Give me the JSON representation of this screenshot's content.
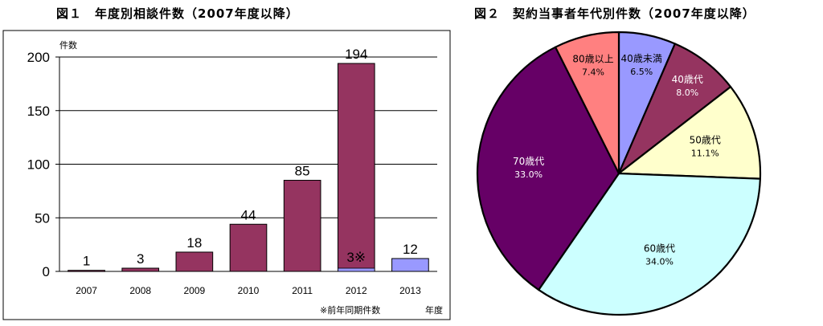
{
  "figures": {
    "bar_title": "図１　年度別相談件数（2007年度以降）",
    "pie_title": "図２　契約当事者年代別件数（2007年度以降）"
  },
  "chart_data": [
    {
      "type": "bar",
      "title": "図１　年度別相談件数（2007年度以降）",
      "ylabel": "件数",
      "xlabel": "年度",
      "ylim": [
        0,
        200
      ],
      "yticks": [
        0,
        50,
        100,
        150,
        200
      ],
      "categories": [
        "2007",
        "2008",
        "2009",
        "2010",
        "2011",
        "2012",
        "2013"
      ],
      "values": [
        1,
        3,
        18,
        44,
        85,
        194,
        12
      ],
      "value_labels": [
        "1",
        "3",
        "18",
        "44",
        "85",
        "194",
        "12"
      ],
      "bar_colors": [
        "#953460",
        "#953460",
        "#953460",
        "#953460",
        "#953460",
        "#953460",
        "#9999ff"
      ],
      "overlay": {
        "category": "2012",
        "value": 3,
        "label": "3※",
        "color": "#9999ff"
      },
      "note": "※前年同期件数",
      "grid": true
    },
    {
      "type": "pie",
      "title": "図２　契約当事者年代別件数（2007年度以降）",
      "slices": [
        {
          "label": "40歳未満",
          "value": 6.5,
          "pct": "6.5%",
          "color": "#9999ff"
        },
        {
          "label": "40歳代",
          "value": 8.0,
          "pct": "8.0%",
          "color": "#953460"
        },
        {
          "label": "50歳代",
          "value": 11.1,
          "pct": "11.1%",
          "color": "#ffffcc"
        },
        {
          "label": "60歳代",
          "value": 34.0,
          "pct": "34.0%",
          "color": "#ccffff"
        },
        {
          "label": "70歳代",
          "value": 33.0,
          "pct": "33.0%",
          "color": "#660066"
        },
        {
          "label": "80歳以上",
          "value": 7.4,
          "pct": "7.4%",
          "color": "#ff8080"
        }
      ],
      "highlight": [
        "40歳未満",
        "80歳以上"
      ]
    }
  ]
}
